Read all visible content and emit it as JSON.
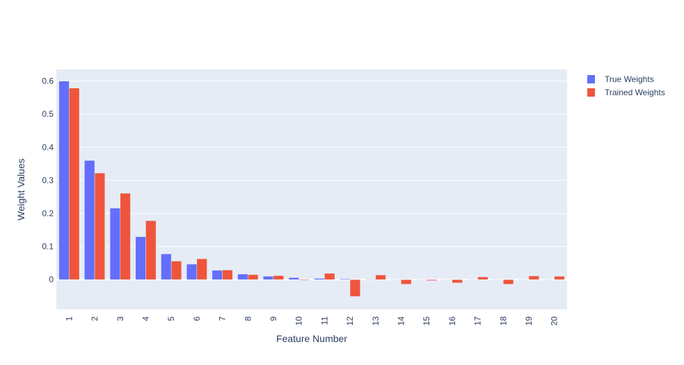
{
  "chart_data": {
    "type": "bar",
    "title": "",
    "xlabel": "Feature Number",
    "ylabel": "Weight Values",
    "categories": [
      "1",
      "2",
      "3",
      "4",
      "5",
      "6",
      "7",
      "8",
      "9",
      "10",
      "11",
      "12",
      "13",
      "14",
      "15",
      "16",
      "17",
      "18",
      "19",
      "20"
    ],
    "series": [
      {
        "name": "True Weights",
        "color": "#636efa",
        "values": [
          0.6,
          0.36,
          0.216,
          0.1296,
          0.07776,
          0.046656,
          0.02799,
          0.0168,
          0.01008,
          0.006047,
          0.003628,
          0.002177,
          0.001306,
          0.000784,
          0.00047,
          0.000282,
          0.000169,
          0.000102,
          6.1e-05,
          3.7e-05
        ]
      },
      {
        "name": "Trained Weights",
        "color": "#ef553b",
        "values": [
          0.579,
          0.322,
          0.261,
          0.178,
          0.056,
          0.063,
          0.029,
          0.015,
          0.012,
          -0.002,
          0.019,
          -0.051,
          0.014,
          -0.014,
          -0.003,
          -0.01,
          0.008,
          -0.014,
          0.011,
          0.01
        ]
      }
    ],
    "ylim": [
      -0.09,
      0.635
    ],
    "yticks": [
      0,
      0.1,
      0.2,
      0.3,
      0.4,
      0.5,
      0.6
    ],
    "ytick_labels": [
      "0",
      "0.1",
      "0.2",
      "0.3",
      "0.4",
      "0.5",
      "0.6"
    ],
    "grid": true,
    "legend_position": "top-right",
    "background": "#e5ecf6"
  }
}
